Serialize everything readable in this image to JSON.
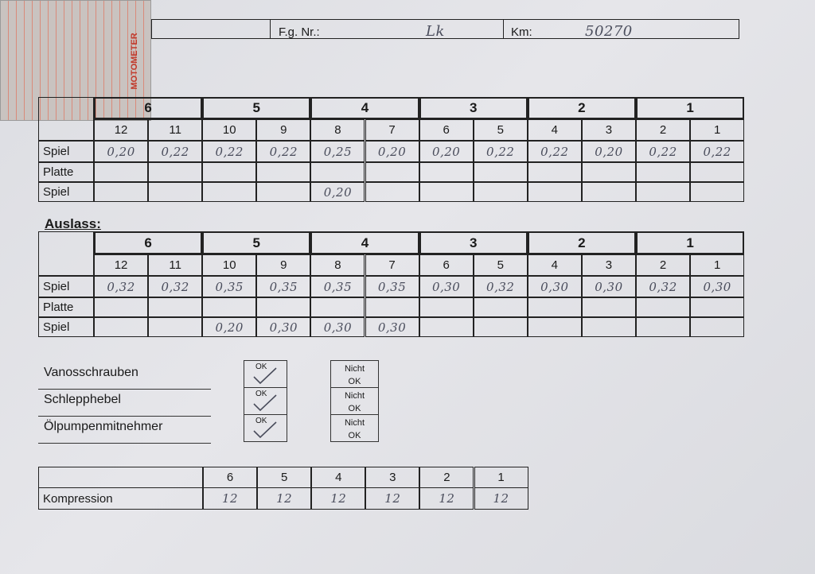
{
  "card": {
    "brand": "MOTOMETER"
  },
  "header": {
    "fg_label": "F.g. Nr.:",
    "fg_value": "Lk",
    "km_label": "Km:",
    "km_value": "50270"
  },
  "intake": {
    "cylinders": [
      "6",
      "5",
      "4",
      "3",
      "2",
      "1"
    ],
    "valves": [
      "12",
      "11",
      "10",
      "9",
      "8",
      "7",
      "6",
      "5",
      "4",
      "3",
      "2",
      "1"
    ],
    "rows": [
      {
        "label": "Spiel",
        "values": [
          "0,20",
          "0,22",
          "0,22",
          "0,22",
          "0,25",
          "0,20",
          "0,20",
          "0,22",
          "0,22",
          "0,20",
          "0,22",
          "0,22"
        ]
      },
      {
        "label": "Platte",
        "values": [
          null,
          null,
          null,
          null,
          null,
          null,
          null,
          null,
          null,
          null,
          null,
          null
        ]
      },
      {
        "label": "Spiel",
        "values": [
          null,
          null,
          null,
          null,
          "0,20",
          null,
          null,
          null,
          null,
          null,
          null,
          null
        ]
      }
    ]
  },
  "exhaust": {
    "title": "Auslass:",
    "cylinders": [
      "6",
      "5",
      "4",
      "3",
      "2",
      "1"
    ],
    "valves": [
      "12",
      "11",
      "10",
      "9",
      "8",
      "7",
      "6",
      "5",
      "4",
      "3",
      "2",
      "1"
    ],
    "rows": [
      {
        "label": "Spiel",
        "values": [
          "0,32",
          "0,32",
          "0,35",
          "0,35",
          "0,35",
          "0,35",
          "0,30",
          "0,32",
          "0,30",
          "0,30",
          "0,32",
          "0,30"
        ]
      },
      {
        "label": "Platte",
        "values": [
          null,
          null,
          null,
          null,
          null,
          null,
          null,
          null,
          null,
          null,
          null,
          null
        ]
      },
      {
        "label": "Spiel",
        "values": [
          null,
          null,
          "0,20",
          "0,30",
          "0,30",
          "0,30",
          null,
          null,
          null,
          null,
          null,
          null
        ]
      }
    ]
  },
  "checks": {
    "items": [
      {
        "label": "Vanosschrauben",
        "ok": "OK",
        "not_ok": "Nicht OK"
      },
      {
        "label": "Schlepphebel",
        "ok": "OK",
        "not_ok": "Nicht OK"
      },
      {
        "label": "Ölpumpenmitnehmer",
        "ok": "OK",
        "not_ok": "Nicht OK"
      }
    ]
  },
  "compression": {
    "label": "Kompression",
    "cylinders": [
      "6",
      "5",
      "4",
      "3",
      "2",
      "1"
    ],
    "values": [
      "12",
      "12",
      "12",
      "12",
      "12",
      "12"
    ]
  }
}
